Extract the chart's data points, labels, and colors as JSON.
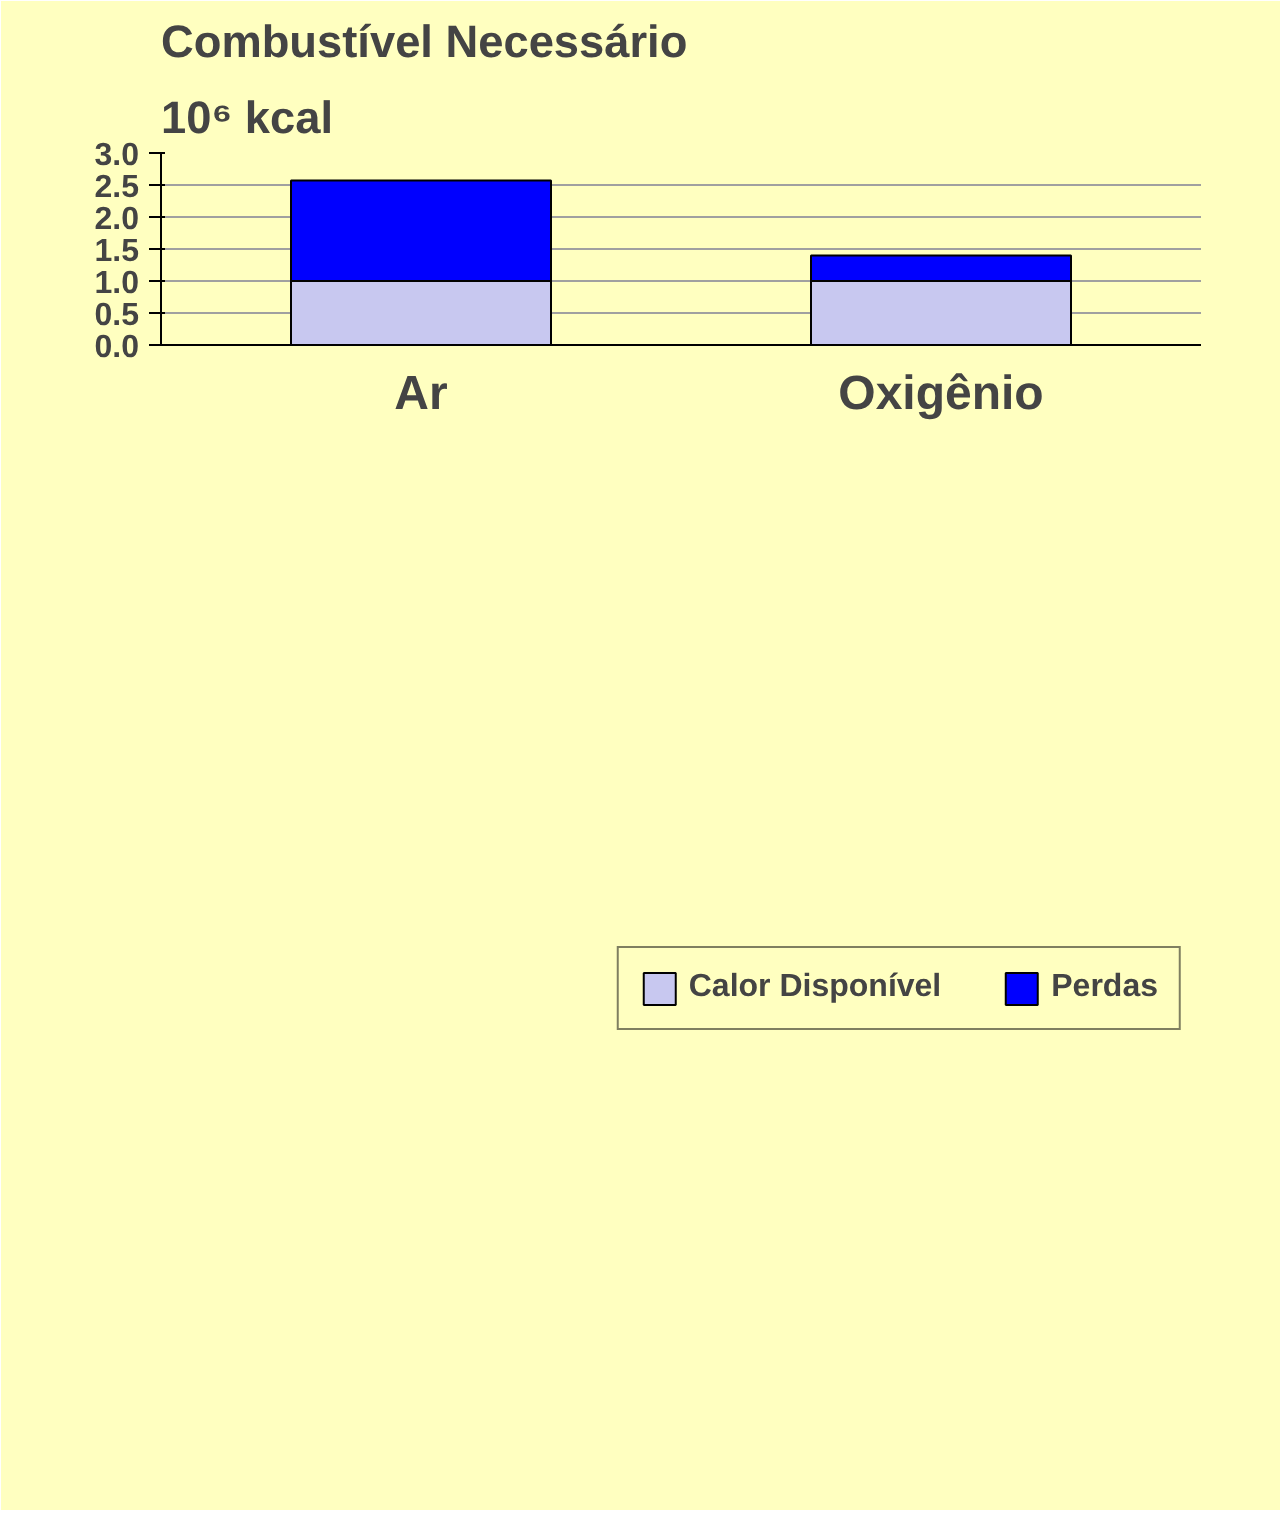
{
  "chart_data": {
    "type": "bar",
    "title": "Combustível Necessário",
    "ylabel": "10⁶ kcal",
    "categories": [
      "Ar",
      "Oxigênio"
    ],
    "stacked": true,
    "series": [
      {
        "name": "Calor Disponível",
        "color": "#c8c8f0",
        "values": [
          1.0,
          1.0
        ]
      },
      {
        "name": "Perdas",
        "color": "#0000ff",
        "values": [
          1.57,
          0.4
        ]
      }
    ],
    "ylim": [
      0,
      3.0
    ],
    "yticks": [
      {
        "value": 0,
        "label": "0.0"
      },
      {
        "value": 0.5,
        "label": "0.5"
      },
      {
        "value": 1,
        "label": "1.0"
      },
      {
        "value": 1.5,
        "label": "1.5"
      },
      {
        "value": 2,
        "label": "2.0"
      },
      {
        "value": 2.5,
        "label": "2.5"
      },
      {
        "value": 3,
        "label": "3.0"
      }
    ],
    "grid": "y",
    "legend": "bottom"
  }
}
